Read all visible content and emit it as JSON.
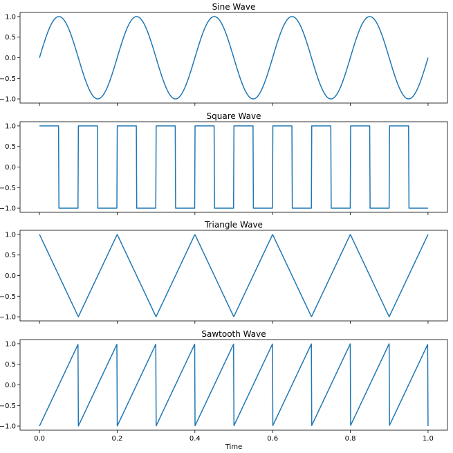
{
  "chart_data": [
    {
      "type": "line",
      "title": "Sine Wave",
      "wave": "sine",
      "frequency": 5,
      "x": [
        0.0,
        1.0
      ],
      "xlim": [
        -0.05,
        1.05
      ],
      "ylim": [
        -1.1,
        1.1
      ],
      "yticks": [
        -1.0,
        -0.5,
        0.0,
        0.5,
        1.0
      ],
      "ytick_labels": [
        "−1.0",
        "−0.5",
        "0.0",
        "0.5",
        "1.0"
      ],
      "series": [
        {
          "color": "#1f77b4"
        }
      ]
    },
    {
      "type": "line",
      "title": "Square Wave",
      "wave": "square",
      "frequency": 10,
      "x": [
        0.0,
        1.0
      ],
      "xlim": [
        -0.05,
        1.05
      ],
      "ylim": [
        -1.1,
        1.1
      ],
      "yticks": [
        -1.0,
        -0.5,
        0.0,
        0.5,
        1.0
      ],
      "ytick_labels": [
        "−1.0",
        "−0.5",
        "0.0",
        "0.5",
        "1.0"
      ],
      "series": [
        {
          "color": "#1f77b4"
        }
      ]
    },
    {
      "type": "line",
      "title": "Triangle Wave",
      "wave": "triangle",
      "frequency": 5,
      "x": [
        0.0,
        1.0
      ],
      "xlim": [
        -0.05,
        1.05
      ],
      "ylim": [
        -1.1,
        1.1
      ],
      "yticks": [
        -1.0,
        -0.5,
        0.0,
        0.5,
        1.0
      ],
      "ytick_labels": [
        "−1.0",
        "−0.5",
        "0.0",
        "0.5",
        "1.0"
      ],
      "series": [
        {
          "color": "#1f77b4"
        }
      ]
    },
    {
      "type": "line",
      "title": "Sawtooth Wave",
      "wave": "sawtooth",
      "frequency": 10,
      "x": [
        0.0,
        1.0
      ],
      "xlim": [
        -0.05,
        1.05
      ],
      "ylim": [
        -1.1,
        1.1
      ],
      "yticks": [
        -1.0,
        -0.5,
        0.0,
        0.5,
        1.0
      ],
      "ytick_labels": [
        "−1.0",
        "−0.5",
        "0.0",
        "0.5",
        "1.0"
      ],
      "xticks": [
        0.0,
        0.2,
        0.4,
        0.6,
        0.8,
        1.0
      ],
      "xtick_labels": [
        "0.0",
        "0.2",
        "0.4",
        "0.6",
        "0.8",
        "1.0"
      ],
      "xlabel": "Time",
      "series": [
        {
          "color": "#1f77b4"
        }
      ]
    }
  ],
  "shared_xticks": [
    0.0,
    0.2,
    0.4,
    0.6,
    0.8,
    1.0
  ]
}
